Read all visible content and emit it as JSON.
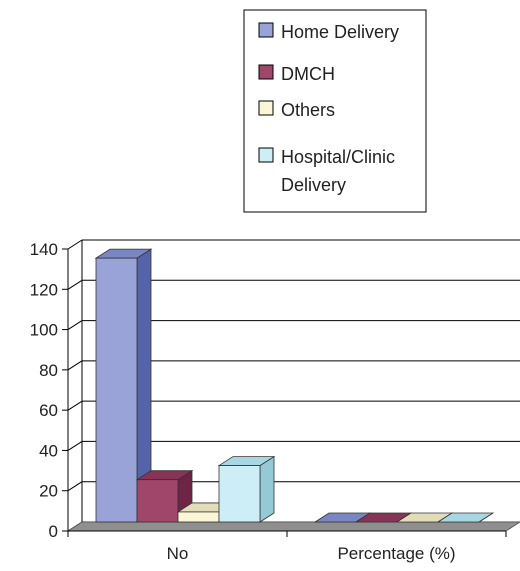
{
  "chart_data": {
    "type": "bar",
    "style": "3d-clustered-column",
    "categories": [
      "No",
      "Percentage (%)"
    ],
    "series": [
      {
        "name": "Home Delivery",
        "values": [
          131,
          0
        ],
        "color": "#99A3D8",
        "side": "#5563A8",
        "top": "#7A85C4"
      },
      {
        "name": "DMCH",
        "values": [
          21,
          0
        ],
        "color": "#A0466B",
        "side": "#6E2444",
        "top": "#873456"
      },
      {
        "name": "Others",
        "values": [
          5,
          0
        ],
        "color": "#FBF6D6",
        "side": "#CFC8A0",
        "top": "#E3DCB8"
      },
      {
        "name": "Hospital/Clinic Delivery",
        "values": [
          28,
          0
        ],
        "color": "#CDEEF6",
        "side": "#94C9D6",
        "top": "#A7D7E3"
      }
    ],
    "ylim": [
      0,
      140
    ],
    "y_ticks": [
      0,
      20,
      40,
      60,
      80,
      100,
      120,
      140
    ],
    "grid": true,
    "legend_position": "top"
  },
  "legend": {
    "items": [
      {
        "label_lines": [
          "Home Delivery"
        ]
      },
      {
        "label_lines": [
          "DMCH"
        ]
      },
      {
        "label_lines": [
          "Others"
        ]
      },
      {
        "label_lines": [
          "Hospital/Clinic",
          "Delivery"
        ]
      }
    ]
  }
}
